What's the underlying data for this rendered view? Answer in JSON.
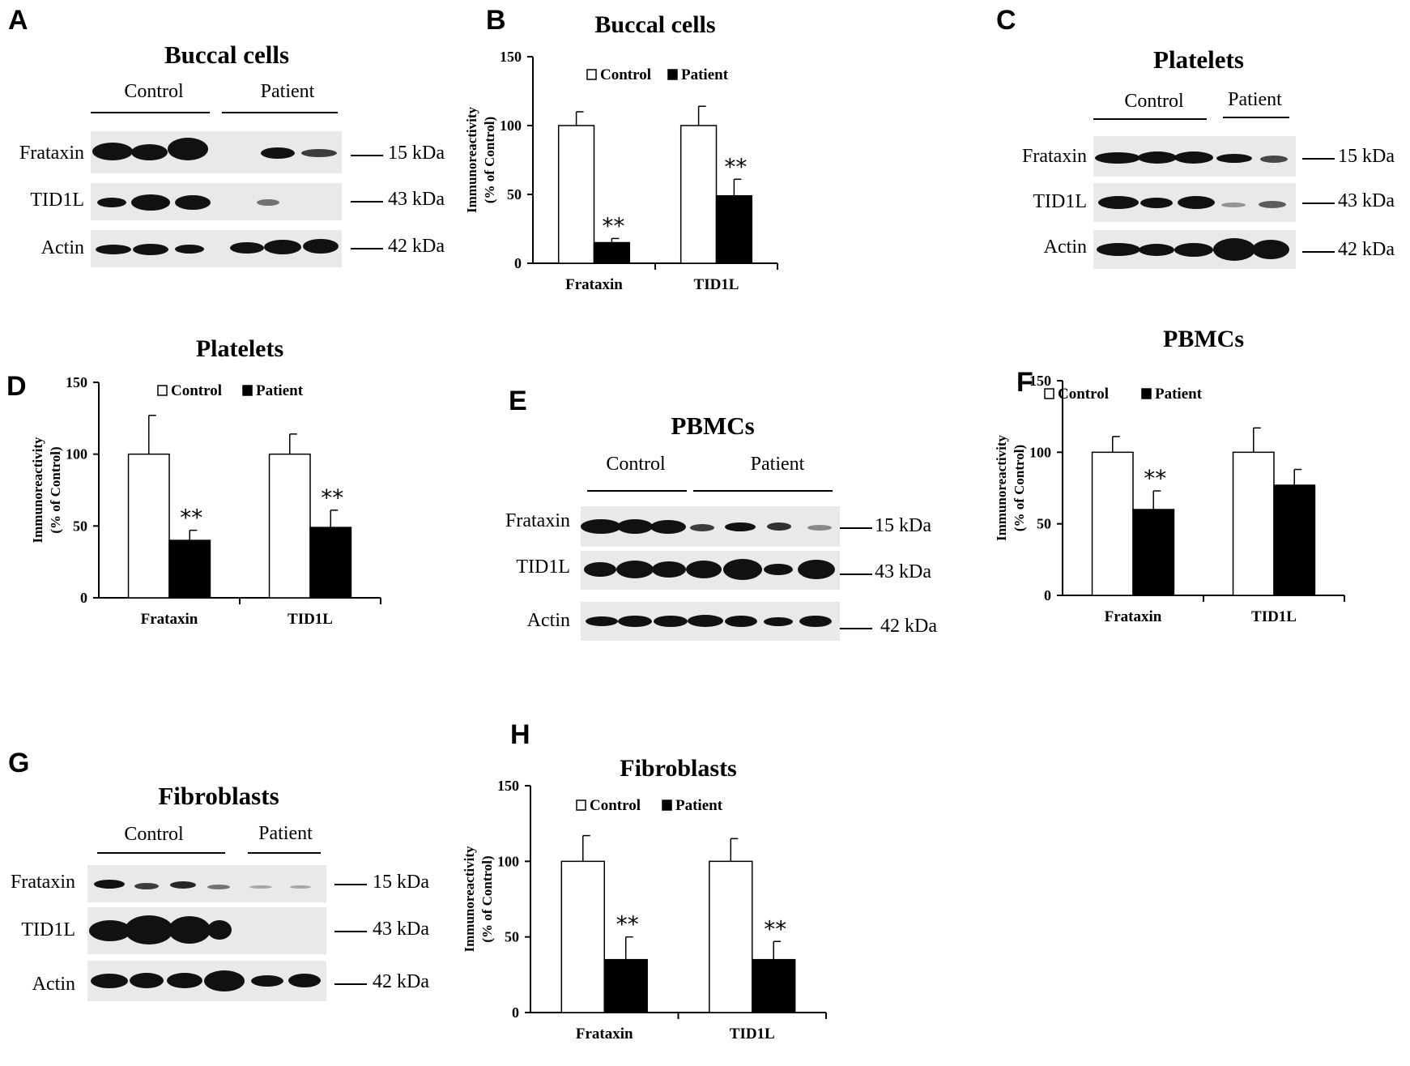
{
  "panels": {
    "a": {
      "letter": "A",
      "title": "Buccal cells",
      "groups": [
        "Control",
        "Patient"
      ],
      "rows": [
        "Frataxin",
        "TID1L",
        "Actin"
      ],
      "kda": [
        "15 kDa",
        "43 kDa",
        "42 kDa"
      ]
    },
    "c": {
      "letter": "C",
      "title": "Platelets",
      "groups": [
        "Control",
        "Patient"
      ],
      "rows": [
        "Frataxin",
        "TID1L",
        "Actin"
      ],
      "kda": [
        "15 kDa",
        "43 kDa",
        "42 kDa"
      ]
    },
    "e": {
      "letter": "E",
      "title": "PBMCs",
      "groups": [
        "Control",
        "Patient"
      ],
      "rows": [
        "Frataxin",
        "TID1L",
        "Actin"
      ],
      "kda": [
        "15 kDa",
        "43 kDa",
        "42 kDa"
      ]
    },
    "g": {
      "letter": "G",
      "title": "Fibroblasts",
      "groups": [
        "Control",
        "Patient"
      ],
      "rows": [
        "Frataxin",
        "TID1L",
        "Actin"
      ],
      "kda": [
        "15 kDa",
        "43 kDa",
        "42 kDa"
      ]
    }
  },
  "chart_data": [
    {
      "id": "B",
      "letter": "B",
      "type": "bar",
      "title": "Buccal cells",
      "ylabel": [
        "Immunoreactivity",
        "(% of Control)"
      ],
      "ylim": [
        0,
        150
      ],
      "yticks": [
        0,
        50,
        100,
        150
      ],
      "categories": [
        "Frataxin",
        "TID1L"
      ],
      "series": [
        {
          "name": "Control",
          "values": [
            100,
            100
          ],
          "errors": [
            10,
            14
          ],
          "color": "#ffffff"
        },
        {
          "name": "Patient",
          "values": [
            15,
            49
          ],
          "errors": [
            3,
            12
          ],
          "color": "#000000"
        }
      ],
      "annotations": [
        "**",
        "**"
      ],
      "legend": "top"
    },
    {
      "id": "D",
      "letter": "D",
      "type": "bar",
      "title": "Platelets",
      "ylabel": [
        "Immunoreactivity",
        "(% of Control)"
      ],
      "ylim": [
        0,
        150
      ],
      "yticks": [
        0,
        50,
        100,
        150
      ],
      "categories": [
        "Frataxin",
        "TID1L"
      ],
      "series": [
        {
          "name": "Control",
          "values": [
            100,
            100
          ],
          "errors": [
            27,
            14
          ],
          "color": "#ffffff"
        },
        {
          "name": "Patient",
          "values": [
            40,
            49
          ],
          "errors": [
            7,
            12
          ],
          "color": "#000000"
        }
      ],
      "annotations": [
        "**",
        "**"
      ],
      "legend": "top"
    },
    {
      "id": "F",
      "letter": "F",
      "type": "bar",
      "title": "PBMCs",
      "ylabel": [
        "Immunoreactivity",
        "(% of Control)"
      ],
      "ylim": [
        0,
        150
      ],
      "yticks": [
        0,
        50,
        100,
        150
      ],
      "categories": [
        "Frataxin",
        "TID1L"
      ],
      "series": [
        {
          "name": "Control",
          "values": [
            100,
            100
          ],
          "errors": [
            11,
            17
          ],
          "color": "#ffffff"
        },
        {
          "name": "Patient",
          "values": [
            60,
            77
          ],
          "errors": [
            13,
            11
          ],
          "color": "#000000"
        }
      ],
      "annotations": [
        "**",
        ""
      ],
      "legend": "top"
    },
    {
      "id": "H",
      "letter": "H",
      "type": "bar",
      "title": "Fibroblasts",
      "ylabel": [
        "Immunoreactivity",
        "(% of Control)"
      ],
      "ylim": [
        0,
        150
      ],
      "yticks": [
        0,
        50,
        100,
        150
      ],
      "categories": [
        "Frataxin",
        "TID1L"
      ],
      "series": [
        {
          "name": "Control",
          "values": [
            100,
            100
          ],
          "errors": [
            17,
            15
          ],
          "color": "#ffffff"
        },
        {
          "name": "Patient",
          "values": [
            35,
            35
          ],
          "errors": [
            15,
            12
          ],
          "color": "#000000"
        }
      ],
      "annotations": [
        "**",
        "**"
      ],
      "legend": "top"
    }
  ]
}
